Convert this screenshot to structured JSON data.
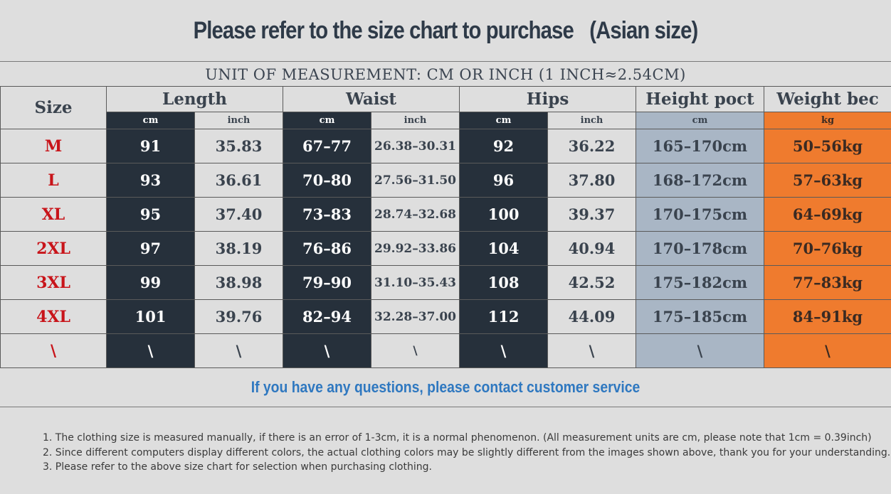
{
  "title": {
    "main": "Please refer to the size chart to purchase",
    "suffix": "(Asian size)"
  },
  "unit_line": "UNIT OF MEASUREMENT: CM OR INCH (1 INCH≈2.54CM)",
  "headers": {
    "size": "Size",
    "length": "Length",
    "waist": "Waist",
    "hips": "Hips",
    "height": "Height poct",
    "weight": "Weight bec"
  },
  "subheaders": {
    "length_cm": "cm",
    "length_inch": "inch",
    "waist_cm": "cm",
    "waist_inch": "inch",
    "hips_cm": "cm",
    "hips_inch": "inch",
    "height_cm": "cm",
    "weight_kg": "kg"
  },
  "rows": [
    {
      "size": "M",
      "length_cm": "91",
      "length_inch": "35.83",
      "waist_cm": "67–77",
      "waist_inch": "26.38–30.31",
      "hips_cm": "92",
      "hips_inch": "36.22",
      "height": "165–170cm",
      "weight": "50–56kg"
    },
    {
      "size": "L",
      "length_cm": "93",
      "length_inch": "36.61",
      "waist_cm": "70–80",
      "waist_inch": "27.56–31.50",
      "hips_cm": "96",
      "hips_inch": "37.80",
      "height": "168–172cm",
      "weight": "57–63kg"
    },
    {
      "size": "XL",
      "length_cm": "95",
      "length_inch": "37.40",
      "waist_cm": "73–83",
      "waist_inch": "28.74–32.68",
      "hips_cm": "100",
      "hips_inch": "39.37",
      "height": "170–175cm",
      "weight": "64–69kg"
    },
    {
      "size": "2XL",
      "length_cm": "97",
      "length_inch": "38.19",
      "waist_cm": "76–86",
      "waist_inch": "29.92–33.86",
      "hips_cm": "104",
      "hips_inch": "40.94",
      "height": "170–178cm",
      "weight": "70–76kg"
    },
    {
      "size": "3XL",
      "length_cm": "99",
      "length_inch": "38.98",
      "waist_cm": "79–90",
      "waist_inch": "31.10–35.43",
      "hips_cm": "108",
      "hips_inch": "42.52",
      "height": "175–182cm",
      "weight": "77–83kg"
    },
    {
      "size": "4XL",
      "length_cm": "101",
      "length_inch": "39.76",
      "waist_cm": "82–94",
      "waist_inch": "32.28–37.00",
      "hips_cm": "112",
      "hips_inch": "44.09",
      "height": "175–185cm",
      "weight": "84–91kg"
    },
    {
      "size": "\\",
      "length_cm": "\\",
      "length_inch": "\\",
      "waist_cm": "\\",
      "waist_inch": "\\",
      "hips_cm": "\\",
      "hips_inch": "\\",
      "height": "\\",
      "weight": "\\"
    }
  ],
  "contact": "If you have any questions, please contact customer service",
  "notes": [
    "1. The clothing size is measured manually, if there is an error of 1-3cm, it is a normal phenomenon. (All measurement units are cm, please note that 1cm = 0.39inch)",
    "2. Since different computers display different colors, the actual clothing colors may be slightly different from the images shown above, thank you for your understanding.",
    "3. Please refer to the above size chart for selection when purchasing clothing."
  ],
  "colors": {
    "dark_column": "#26303b",
    "light_column": "#dedede",
    "height_column": "#a9b6c5",
    "weight_column": "#ef7b2e",
    "size_text": "#c8141a",
    "contact_text": "#2f78c0"
  }
}
